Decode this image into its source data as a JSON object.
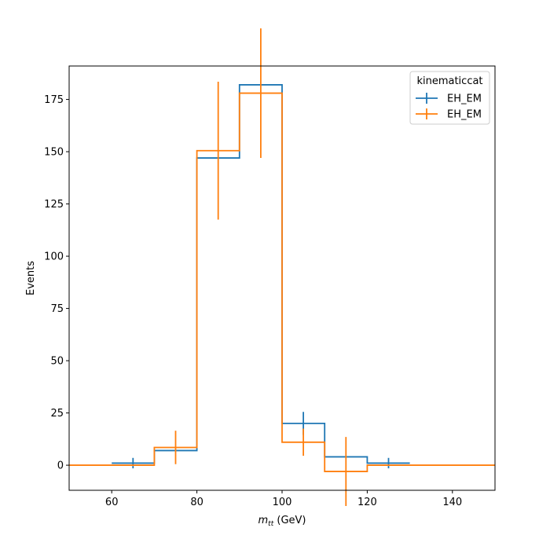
{
  "chart_data": {
    "type": "histogram",
    "xlabel_main": "m",
    "xlabel_sub": "tt",
    "xlabel_unit": " (GeV)",
    "ylabel": "Events",
    "xlim": [
      50,
      150
    ],
    "ylim": [
      -12,
      191
    ],
    "xticks": [
      60,
      80,
      100,
      120,
      140
    ],
    "yticks": [
      0,
      25,
      50,
      75,
      100,
      125,
      150,
      175
    ],
    "grid": false,
    "legend": {
      "title": "kinematiccat",
      "placement": "top-right",
      "entries": [
        "EH_EM",
        "EH_EM"
      ]
    },
    "series": [
      {
        "name": "EH_EM",
        "color": "#1f77b4",
        "edges": [
          60,
          70,
          80,
          90,
          100,
          110,
          120,
          130
        ],
        "values": [
          1,
          7,
          147,
          182,
          20,
          4,
          1
        ],
        "errors": [
          2.5,
          0,
          0,
          0,
          5.5,
          0,
          2.5
        ]
      },
      {
        "name": "EH_EM",
        "color": "#ff7f0e",
        "edges": [
          50,
          60,
          70,
          80,
          90,
          100,
          110,
          120,
          130,
          140,
          150
        ],
        "values": [
          0,
          0,
          8.5,
          150.5,
          178,
          11,
          -3,
          0,
          0,
          0
        ],
        "errors": [
          0,
          0,
          8,
          33,
          31,
          6.5,
          16.5,
          0,
          0,
          0
        ]
      }
    ]
  }
}
